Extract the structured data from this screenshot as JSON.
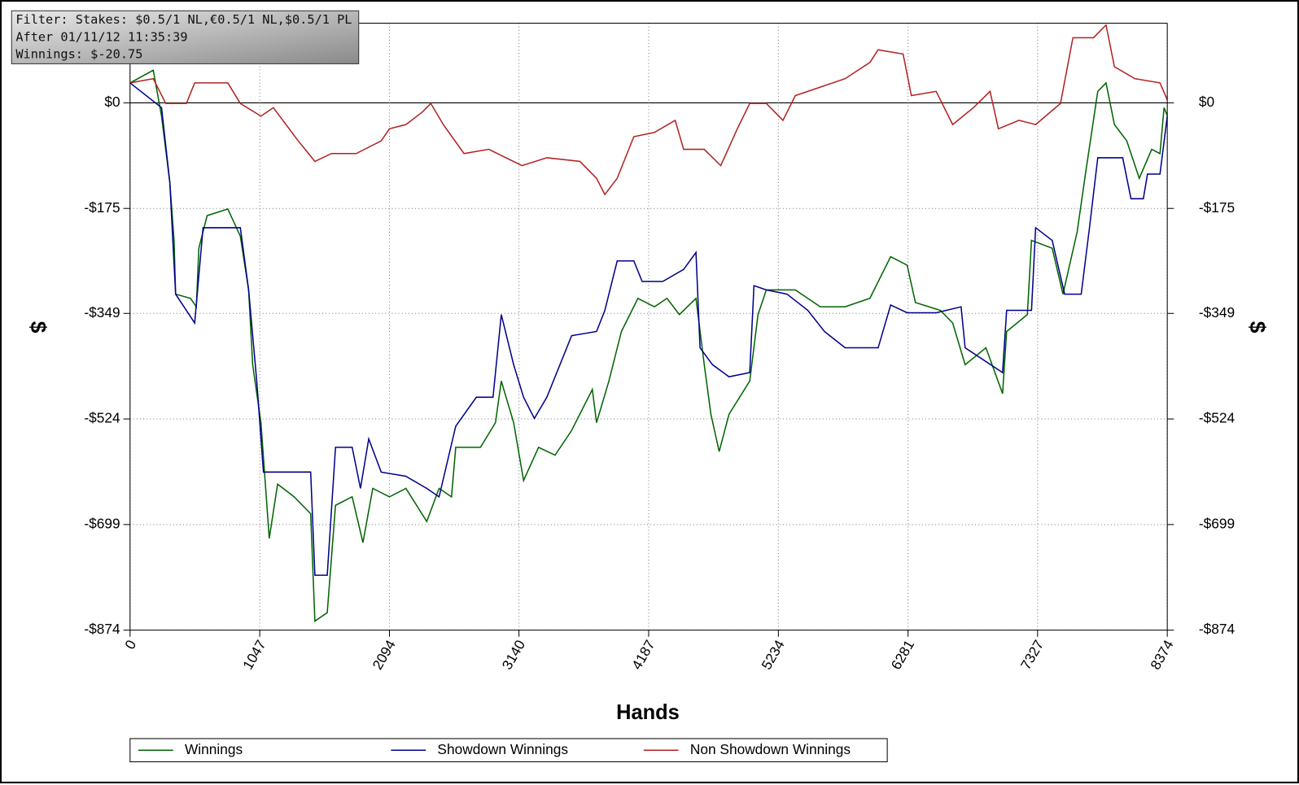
{
  "chart_data": {
    "type": "line",
    "annotations": [
      "Filter: Stakes: $0.5/1 NL,€0.5/1 NL,$0.5/1 PL",
      "After 01/11/12 11:35:39",
      "Winnings: $-20.75"
    ],
    "xlabel": "Hands",
    "ylabel": "$",
    "xlim": [
      0,
      8374
    ],
    "xticks": [
      0,
      1047,
      2094,
      3140,
      4187,
      5234,
      6281,
      7327,
      8374
    ],
    "ylim": [
      -874,
      132
    ],
    "yticks": [
      {
        "value": 0,
        "label": "$0"
      },
      {
        "value": -175,
        "label": "-$175"
      },
      {
        "value": -349,
        "label": "-$349"
      },
      {
        "value": -524,
        "label": "-$524"
      },
      {
        "value": -699,
        "label": "-$699"
      },
      {
        "value": -874,
        "label": "-$874"
      }
    ],
    "grid": true,
    "legend": "bottom",
    "series": [
      {
        "name": "Winnings",
        "color": "#006400",
        "x": [
          0,
          187,
          254,
          321,
          355,
          368,
          488,
          535,
          555,
          622,
          789,
          890,
          957,
          990,
          1057,
          1090,
          1124,
          1191,
          1324,
          1458,
          1492,
          1592,
          1659,
          1793,
          1880,
          1960,
          2094,
          2227,
          2395,
          2495,
          2595,
          2629,
          2829,
          2950,
          2997,
          3097,
          3177,
          3298,
          3431,
          3565,
          3732,
          3766,
          3866,
          3967,
          4100,
          4234,
          4335,
          4435,
          4569,
          4636,
          4689,
          4756,
          4836,
          5003,
          5070,
          5137,
          5371,
          5572,
          5773,
          5973,
          6141,
          6274,
          6341,
          6542,
          6642,
          6742,
          6910,
          7044,
          7077,
          7244,
          7278,
          7445,
          7532,
          7646,
          7713,
          7813,
          7880,
          7947,
          8047,
          8148,
          8248,
          8315,
          8348,
          8374
        ],
        "values": [
          33,
          54,
          -22,
          -132,
          -228,
          -317,
          -324,
          -338,
          -241,
          -187,
          -176,
          -221,
          -310,
          -434,
          -530,
          -626,
          -722,
          -632,
          -653,
          -681,
          -859,
          -845,
          -667,
          -653,
          -729,
          -639,
          -653,
          -639,
          -694,
          -639,
          -653,
          -571,
          -571,
          -530,
          -461,
          -530,
          -626,
          -571,
          -584,
          -543,
          -475,
          -530,
          -461,
          -379,
          -324,
          -338,
          -324,
          -351,
          -324,
          -434,
          -516,
          -578,
          -516,
          -461,
          -351,
          -310,
          -310,
          -338,
          -338,
          -324,
          -255,
          -269,
          -331,
          -344,
          -365,
          -434,
          -406,
          -482,
          -379,
          -351,
          -228,
          -241,
          -317,
          -214,
          -118,
          19,
          33,
          -36,
          -63,
          -125,
          -77,
          -84,
          -8,
          -21
        ]
      },
      {
        "name": "Showdown Winnings",
        "color": "#00008b",
        "x": [
          0,
          254,
          321,
          368,
          522,
          589,
          890,
          957,
          1023,
          1077,
          1458,
          1492,
          1592,
          1659,
          1793,
          1860,
          1927,
          2027,
          2227,
          2395,
          2495,
          2629,
          2796,
          2930,
          2997,
          3097,
          3177,
          3264,
          3365,
          3565,
          3766,
          3833,
          3933,
          4067,
          4134,
          4301,
          4469,
          4569,
          4602,
          4702,
          4836,
          5003,
          5037,
          5137,
          5304,
          5472,
          5606,
          5773,
          6040,
          6141,
          6274,
          6508,
          6709,
          6742,
          7044,
          7077,
          7278,
          7311,
          7445,
          7545,
          7679,
          7746,
          7813,
          8014,
          8081,
          8181,
          8214,
          8315,
          8374
        ],
        "values": [
          33,
          -8,
          -132,
          -317,
          -365,
          -207,
          -207,
          -310,
          -461,
          -612,
          -612,
          -783,
          -783,
          -571,
          -571,
          -639,
          -557,
          -612,
          -619,
          -639,
          -653,
          -536,
          -488,
          -488,
          -351,
          -434,
          -488,
          -523,
          -488,
          -386,
          -379,
          -344,
          -262,
          -262,
          -296,
          -296,
          -276,
          -248,
          -406,
          -434,
          -454,
          -447,
          -303,
          -310,
          -317,
          -344,
          -379,
          -406,
          -406,
          -335,
          -348,
          -348,
          -338,
          -406,
          -447,
          -344,
          -344,
          -207,
          -228,
          -317,
          -317,
          -207,
          -91,
          -91,
          -159,
          -159,
          -118,
          -118,
          -22
        ]
      },
      {
        "name": "Non Showdown Winnings",
        "color": "#b22222",
        "x": [
          0,
          187,
          288,
          455,
          522,
          789,
          890,
          1057,
          1157,
          1358,
          1492,
          1626,
          1826,
          2027,
          2094,
          2227,
          2361,
          2428,
          2529,
          2696,
          2896,
          3164,
          3365,
          3632,
          3766,
          3833,
          3933,
          4067,
          4234,
          4401,
          4469,
          4636,
          4769,
          4903,
          5003,
          5137,
          5271,
          5371,
          5572,
          5773,
          5973,
          6040,
          6241,
          6308,
          6508,
          6642,
          6809,
          6943,
          7010,
          7177,
          7311,
          7512,
          7612,
          7779,
          7880,
          7947,
          8114,
          8315,
          8374
        ],
        "values": [
          33,
          40,
          -1,
          -1,
          33,
          33,
          -1,
          -22,
          -8,
          -63,
          -97,
          -84,
          -84,
          -63,
          -43,
          -36,
          -15,
          -1,
          -36,
          -84,
          -77,
          -104,
          -91,
          -97,
          -125,
          -152,
          -125,
          -56,
          -49,
          -29,
          -77,
          -77,
          -104,
          -43,
          -1,
          -1,
          -29,
          12,
          26,
          40,
          67,
          88,
          81,
          12,
          19,
          -36,
          -8,
          19,
          -43,
          -29,
          -36,
          -1,
          108,
          108,
          129,
          60,
          40,
          33,
          5
        ]
      }
    ]
  }
}
